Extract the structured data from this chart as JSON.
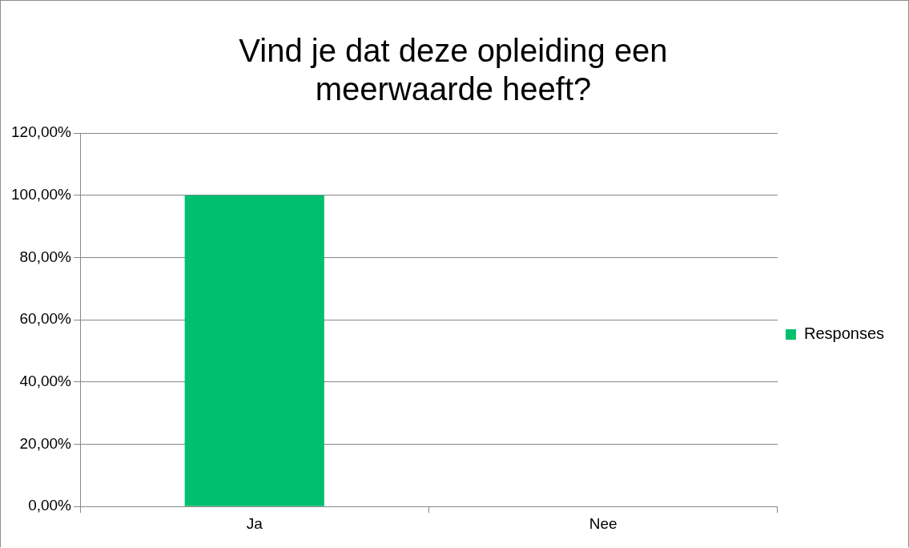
{
  "chart_data": {
    "type": "bar",
    "title": "Vind je dat deze opleiding een meerwaarde heeft?",
    "categories": [
      "Ja",
      "Nee"
    ],
    "series": [
      {
        "name": "Responses",
        "color": "#00bf6f",
        "values": [
          100,
          0
        ]
      }
    ],
    "ylim": [
      0,
      120
    ],
    "yticks": [
      {
        "value": 0,
        "label": "0,00%"
      },
      {
        "value": 20,
        "label": "20,00%"
      },
      {
        "value": 40,
        "label": "40,00%"
      },
      {
        "value": 60,
        "label": "60,00%"
      },
      {
        "value": 80,
        "label": "80,00%"
      },
      {
        "value": 100,
        "label": "100,00%"
      },
      {
        "value": 120,
        "label": "120,00%"
      }
    ],
    "grid": "y",
    "legend": "right"
  }
}
